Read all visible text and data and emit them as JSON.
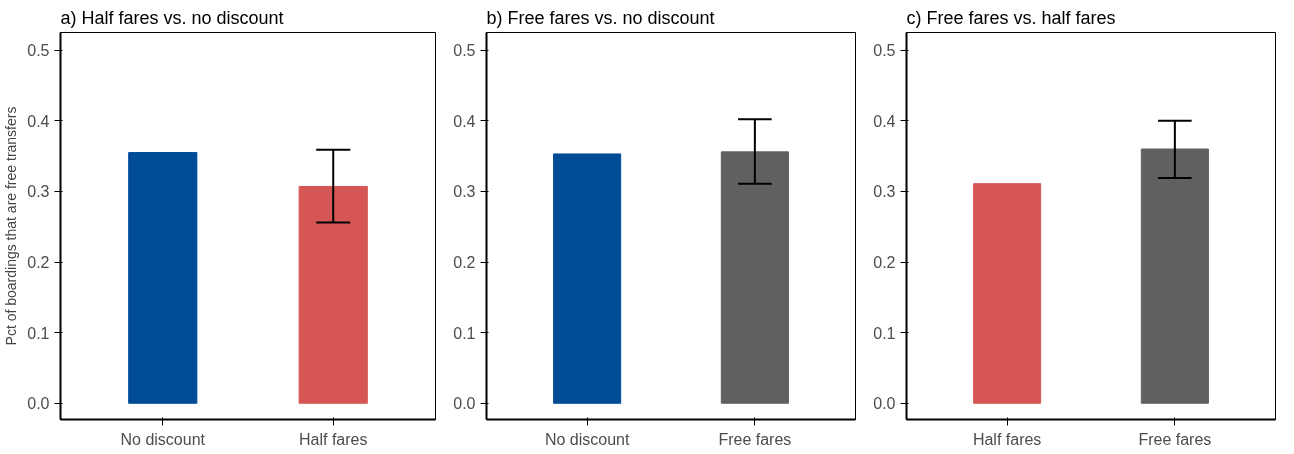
{
  "chart_data": [
    {
      "type": "bar",
      "title": "a) Half fares vs. no discount",
      "ylabel": "Pct of boardings that are free transfers",
      "categories": [
        "No discount",
        "Half fares"
      ],
      "values": [
        0.355,
        0.307
      ],
      "colors": [
        "#004c97",
        "#d65656"
      ],
      "errors": [
        null,
        [
          0.256,
          0.359
        ]
      ],
      "ylim": [
        -0.023,
        0.525
      ],
      "yticks": [
        {
          "value": 0,
          "label": "0.0"
        },
        {
          "value": 0.1,
          "label": "0.1"
        },
        {
          "value": 0.2,
          "label": "0.2"
        },
        {
          "value": 0.3,
          "label": "0.3"
        },
        {
          "value": 0.4,
          "label": "0.4"
        },
        {
          "value": 0.5,
          "label": "0.5"
        }
      ],
      "grid": false
    },
    {
      "type": "bar",
      "title": "b) Free fares vs. no discount",
      "categories": [
        "No discount",
        "Free fares"
      ],
      "values": [
        0.353,
        0.356
      ],
      "colors": [
        "#004c97",
        "#606060"
      ],
      "errors": [
        null,
        [
          0.311,
          0.402
        ]
      ],
      "ylim": [
        -0.023,
        0.525
      ],
      "yticks": [
        {
          "value": 0,
          "label": "0.0"
        },
        {
          "value": 0.1,
          "label": "0.1"
        },
        {
          "value": 0.2,
          "label": "0.2"
        },
        {
          "value": 0.3,
          "label": "0.3"
        },
        {
          "value": 0.4,
          "label": "0.4"
        },
        {
          "value": 0.5,
          "label": "0.5"
        }
      ],
      "grid": false
    },
    {
      "type": "bar",
      "title": "c) Free fares vs. half fares",
      "categories": [
        "Half fares",
        "Free fares"
      ],
      "values": [
        0.311,
        0.36
      ],
      "colors": [
        "#d65656",
        "#606060"
      ],
      "errors": [
        null,
        [
          0.319,
          0.4
        ]
      ],
      "ylim": [
        -0.023,
        0.525
      ],
      "yticks": [
        {
          "value": 0,
          "label": "0.0"
        },
        {
          "value": 0.1,
          "label": "0.1"
        },
        {
          "value": 0.2,
          "label": "0.2"
        },
        {
          "value": 0.3,
          "label": "0.3"
        },
        {
          "value": 0.4,
          "label": "0.4"
        },
        {
          "value": 0.5,
          "label": "0.5"
        }
      ],
      "grid": false
    }
  ]
}
